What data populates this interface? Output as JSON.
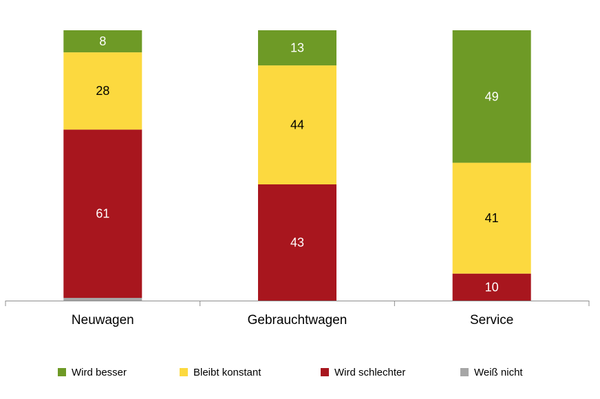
{
  "chart_data": {
    "type": "bar",
    "stacked": true,
    "percent_stacked": true,
    "categories": [
      "Neuwagen",
      "Gebrauchtwagen",
      "Service"
    ],
    "series": [
      {
        "name": "Wird besser",
        "color": "#6e9a26",
        "label_color": "#ffffff",
        "values": [
          8,
          13,
          49
        ]
      },
      {
        "name": "Bleibt konstant",
        "color": "#fcd93f",
        "label_color": "#000000",
        "values": [
          28,
          44,
          41
        ]
      },
      {
        "name": "Wird schlechter",
        "color": "#a8161e",
        "label_color": "#ffffff",
        "values": [
          61,
          43,
          10
        ]
      },
      {
        "name": "Weiß nicht",
        "color": "#a6a6a6",
        "label_color": "#000000",
        "values": [
          1,
          0,
          0
        ]
      }
    ],
    "stack_order_bottom_to_top": [
      "Weiß nicht",
      "Wird schlechter",
      "Bleibt konstant",
      "Wird besser"
    ],
    "ylim": [
      0,
      100
    ],
    "grid": false,
    "legend_position": "bottom",
    "title": "",
    "xlabel": "",
    "ylabel": ""
  }
}
